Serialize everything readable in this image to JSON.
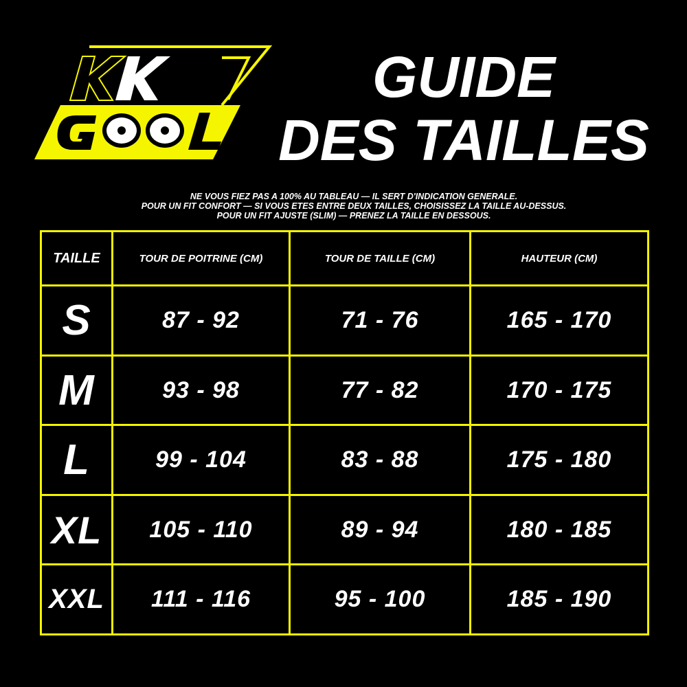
{
  "logo": {
    "line1": "KK",
    "line2": "GOOL",
    "accent": "#f5f500"
  },
  "title": {
    "line1": "GUIDE",
    "line2": "DES TAILLES"
  },
  "notes": [
    "NE VOUS FIEZ PAS A 100% AU TABLEAU — IL SERT D'INDICATION GENERALE.",
    "POUR UN FIT CONFORT — SI VOUS ETES ENTRE DEUX TAILLES, CHOISISSEZ LA TAILLE AU-DESSUS.",
    "POUR UN FIT AJUSTE (SLIM) — PRENEZ LA TAILLE EN DESSOUS."
  ],
  "table": {
    "headers": [
      "TAILLE",
      "TOUR DE POITRINE (CM)",
      "TOUR DE TAILLE (CM)",
      "HAUTEUR (CM)"
    ],
    "rows": [
      [
        "S",
        "87 - 92",
        "71 - 76",
        "165 - 170"
      ],
      [
        "M",
        "93 - 98",
        "77 - 82",
        "170 - 175"
      ],
      [
        "L",
        "99 - 104",
        "83 - 88",
        "175 - 180"
      ],
      [
        "XL",
        "105 - 110",
        "89 - 94",
        "180 - 185"
      ],
      [
        "XXL",
        "111 - 116",
        "95 - 100",
        "185 - 190"
      ]
    ]
  }
}
